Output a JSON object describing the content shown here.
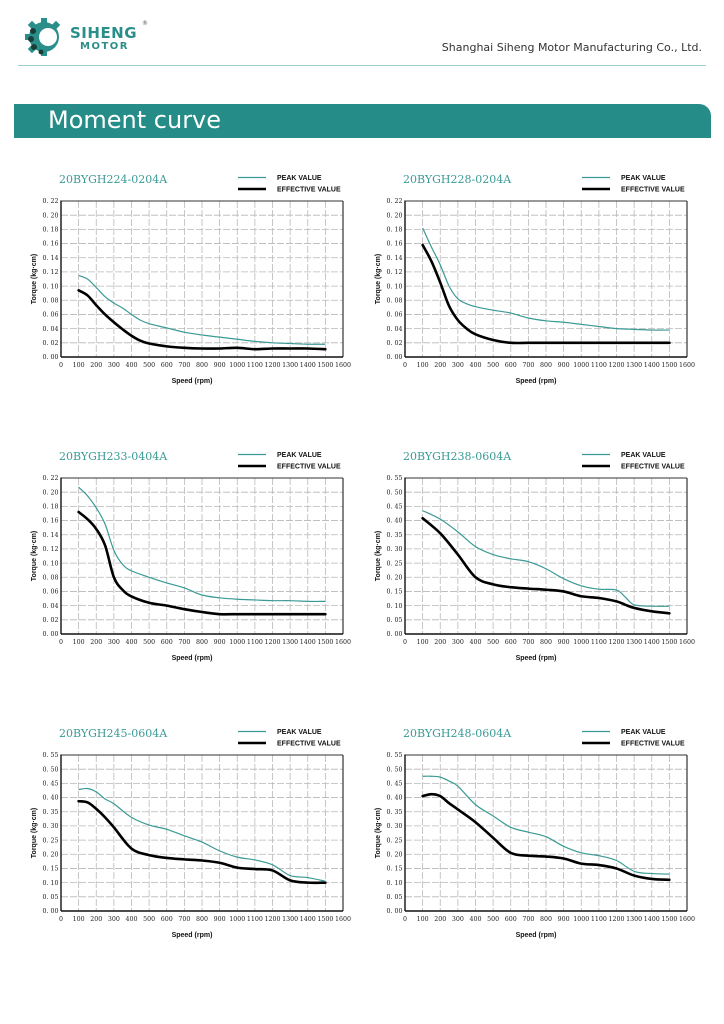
{
  "header": {
    "logo_line1": "SIHENG",
    "logo_line2": "MOTOR",
    "logo_reg": "®",
    "company": "Shanghai Siheng Motor Manufacturing Co., Ltd."
  },
  "banner": {
    "title": "Moment curve"
  },
  "colors": {
    "peak": "#3a9a95",
    "effective": "#000000",
    "brand": "#258c88"
  },
  "chart_data": [
    {
      "type": "line",
      "title": "20BYGH224-0204A",
      "xlabel": "Speed (rpm)",
      "ylabel": "Torque (kg·cm)",
      "xlim": [
        0,
        1600
      ],
      "ylim": [
        0,
        0.22
      ],
      "ystep": 0.02,
      "xstep": 100,
      "ydecimals": 2,
      "grid": true,
      "legend": "top-right",
      "x": [
        100,
        150,
        200,
        250,
        300,
        350,
        400,
        450,
        500,
        600,
        700,
        800,
        900,
        1000,
        1100,
        1200,
        1300,
        1400,
        1500
      ],
      "series": [
        {
          "name": "PEAK VALUE",
          "values": [
            0.115,
            0.11,
            0.098,
            0.085,
            0.076,
            0.069,
            0.06,
            0.052,
            0.047,
            0.041,
            0.035,
            0.031,
            0.028,
            0.025,
            0.022,
            0.02,
            0.019,
            0.018,
            0.018
          ]
        },
        {
          "name": "EFFECTIVE VALUE",
          "values": [
            0.094,
            0.087,
            0.073,
            0.06,
            0.049,
            0.039,
            0.03,
            0.023,
            0.019,
            0.015,
            0.013,
            0.012,
            0.012,
            0.013,
            0.011,
            0.012,
            0.012,
            0.012,
            0.011
          ]
        }
      ]
    },
    {
      "type": "line",
      "title": "20BYGH228-0204A",
      "xlabel": "Speed (rpm)",
      "ylabel": "Torque (kg·cm)",
      "xlim": [
        0,
        1600
      ],
      "ylim": [
        0,
        0.22
      ],
      "ystep": 0.02,
      "xstep": 100,
      "ydecimals": 2,
      "grid": true,
      "legend": "top-right",
      "x": [
        100,
        150,
        200,
        250,
        300,
        350,
        400,
        500,
        600,
        700,
        800,
        900,
        1000,
        1100,
        1200,
        1300,
        1400,
        1500
      ],
      "series": [
        {
          "name": "PEAK VALUE",
          "values": [
            0.182,
            0.155,
            0.13,
            0.1,
            0.082,
            0.075,
            0.071,
            0.066,
            0.062,
            0.055,
            0.051,
            0.049,
            0.046,
            0.043,
            0.04,
            0.039,
            0.038,
            0.038
          ]
        },
        {
          "name": "EFFECTIVE VALUE",
          "values": [
            0.158,
            0.135,
            0.105,
            0.072,
            0.052,
            0.04,
            0.032,
            0.024,
            0.02,
            0.02,
            0.02,
            0.02,
            0.02,
            0.02,
            0.02,
            0.02,
            0.02,
            0.02
          ]
        }
      ]
    },
    {
      "type": "line",
      "title": "20BYGH233-0404A",
      "xlabel": "Speed (rpm)",
      "ylabel": "Torque (kg·cm)",
      "xlim": [
        0,
        1600
      ],
      "ylim": [
        0,
        0.22
      ],
      "ystep": 0.02,
      "xstep": 100,
      "ydecimals": 2,
      "grid": true,
      "legend": "top-right",
      "x": [
        100,
        150,
        200,
        250,
        300,
        350,
        400,
        500,
        600,
        700,
        800,
        900,
        1000,
        1100,
        1200,
        1300,
        1400,
        1500
      ],
      "series": [
        {
          "name": "PEAK VALUE",
          "values": [
            0.207,
            0.195,
            0.178,
            0.155,
            0.118,
            0.098,
            0.089,
            0.08,
            0.072,
            0.065,
            0.055,
            0.051,
            0.049,
            0.048,
            0.047,
            0.047,
            0.046,
            0.046
          ]
        },
        {
          "name": "EFFECTIVE VALUE",
          "values": [
            0.172,
            0.162,
            0.148,
            0.125,
            0.08,
            0.062,
            0.053,
            0.044,
            0.04,
            0.035,
            0.031,
            0.028,
            0.028,
            0.028,
            0.028,
            0.028,
            0.028,
            0.028
          ]
        }
      ]
    },
    {
      "type": "line",
      "title": "20BYGH238-0604A",
      "xlabel": "Speed (rpm)",
      "ylabel": "Torque (kg·cm)",
      "xlim": [
        0,
        1600
      ],
      "ylim": [
        0,
        0.55
      ],
      "ystep": 0.05,
      "xstep": 100,
      "ydecimals": 2,
      "grid": true,
      "legend": "top-right",
      "x": [
        100,
        200,
        300,
        400,
        500,
        600,
        700,
        800,
        900,
        1000,
        1100,
        1200,
        1250,
        1300,
        1400,
        1500
      ],
      "series": [
        {
          "name": "PEAK VALUE",
          "values": [
            0.435,
            0.405,
            0.36,
            0.308,
            0.28,
            0.265,
            0.255,
            0.23,
            0.195,
            0.17,
            0.158,
            0.155,
            0.13,
            0.103,
            0.098,
            0.098
          ]
        },
        {
          "name": "EFFECTIVE VALUE",
          "values": [
            0.408,
            0.355,
            0.28,
            0.2,
            0.175,
            0.165,
            0.16,
            0.156,
            0.15,
            0.133,
            0.127,
            0.115,
            0.103,
            0.092,
            0.08,
            0.073
          ]
        }
      ]
    },
    {
      "type": "line",
      "title": "20BYGH245-0604A",
      "xlabel": "Speed (rpm)",
      "ylabel": "Torque (kg·cm)",
      "xlim": [
        0,
        1600
      ],
      "ylim": [
        0,
        0.55
      ],
      "ystep": 0.05,
      "xstep": 100,
      "ydecimals": 2,
      "grid": true,
      "legend": "top-right",
      "x": [
        100,
        150,
        200,
        250,
        300,
        400,
        500,
        600,
        700,
        800,
        900,
        1000,
        1100,
        1200,
        1300,
        1400,
        1500
      ],
      "series": [
        {
          "name": "PEAK VALUE",
          "values": [
            0.428,
            0.432,
            0.42,
            0.395,
            0.378,
            0.33,
            0.303,
            0.288,
            0.265,
            0.243,
            0.212,
            0.19,
            0.18,
            0.163,
            0.125,
            0.118,
            0.105
          ]
        },
        {
          "name": "EFFECTIVE VALUE",
          "values": [
            0.387,
            0.383,
            0.36,
            0.33,
            0.295,
            0.22,
            0.197,
            0.187,
            0.182,
            0.178,
            0.17,
            0.153,
            0.148,
            0.143,
            0.108,
            0.1,
            0.1
          ]
        }
      ]
    },
    {
      "type": "line",
      "title": "20BYGH248-0604A",
      "xlabel": "Speed (rpm)",
      "ylabel": "Torque (kg·cm)",
      "xlim": [
        0,
        1600
      ],
      "ylim": [
        0,
        0.55
      ],
      "ystep": 0.05,
      "xstep": 100,
      "ydecimals": 2,
      "grid": true,
      "legend": "top-right",
      "x": [
        100,
        150,
        200,
        250,
        300,
        400,
        500,
        600,
        700,
        800,
        900,
        1000,
        1100,
        1200,
        1300,
        1400,
        1500
      ],
      "series": [
        {
          "name": "PEAK VALUE",
          "values": [
            0.475,
            0.475,
            0.472,
            0.458,
            0.44,
            0.375,
            0.335,
            0.295,
            0.278,
            0.262,
            0.228,
            0.205,
            0.195,
            0.178,
            0.14,
            0.132,
            0.13
          ]
        },
        {
          "name": "EFFECTIVE VALUE",
          "values": [
            0.405,
            0.412,
            0.405,
            0.38,
            0.358,
            0.313,
            0.258,
            0.205,
            0.195,
            0.192,
            0.185,
            0.167,
            0.162,
            0.15,
            0.125,
            0.113,
            0.11
          ]
        }
      ]
    }
  ]
}
